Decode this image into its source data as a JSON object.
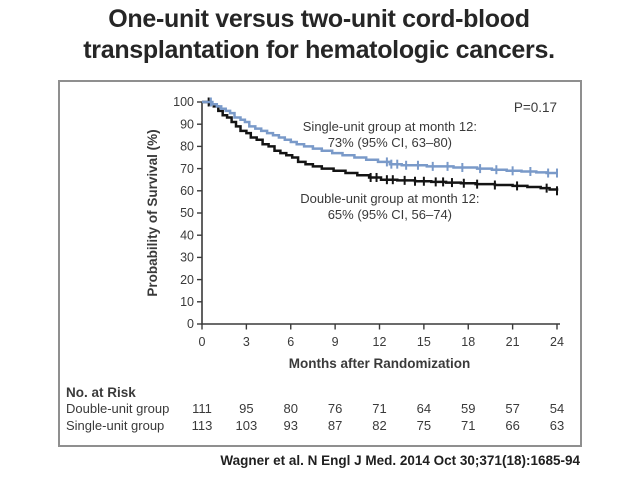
{
  "slide": {
    "title_lines": [
      "One-unit versus two-unit cord-blood",
      "transplantation for hematologic cancers."
    ],
    "citation": "Wagner et al. N Engl J Med. 2014 Oct 30;371(18):1685-94"
  },
  "colors": {
    "single_unit": "#7a9ac9",
    "double_unit": "#141414",
    "axis": "#3a3a3a",
    "text": "#3a3a3a",
    "panel_border": "#8f8f8f"
  },
  "chart_data": {
    "type": "line",
    "subtype": "kaplan-meier-step",
    "title": "",
    "xlabel": "Months after Randomization",
    "ylabel": "Probability of Survival (%)",
    "xlim": [
      0,
      24
    ],
    "ylim": [
      0,
      100
    ],
    "xticks": [
      0,
      3,
      6,
      9,
      12,
      15,
      18,
      21,
      24
    ],
    "yticks": [
      0,
      10,
      20,
      30,
      40,
      50,
      60,
      70,
      80,
      90,
      100
    ],
    "grid": false,
    "legend_position": "none",
    "pvalue_label": "P=0.17",
    "annotations": [
      {
        "name": "single-unit-annotation",
        "lines": [
          "Single-unit group at month 12:",
          "73% (95% CI, 63–80)"
        ],
        "x": 12.7,
        "y": 87
      },
      {
        "name": "double-unit-annotation",
        "lines": [
          "Double-unit group at month 12:",
          "65% (95% CI, 56–74)"
        ],
        "x": 12.7,
        "y": 54.5
      }
    ],
    "series": [
      {
        "name": "Double-unit group",
        "color_key": "double_unit",
        "points": [
          [
            0,
            100
          ],
          [
            0.5,
            99
          ],
          [
            0.8,
            98
          ],
          [
            1.1,
            96
          ],
          [
            1.4,
            94
          ],
          [
            1.7,
            93
          ],
          [
            2.0,
            91
          ],
          [
            2.3,
            89
          ],
          [
            2.6,
            87
          ],
          [
            3.0,
            86
          ],
          [
            3.3,
            84
          ],
          [
            3.7,
            83
          ],
          [
            4.1,
            81
          ],
          [
            4.5,
            80
          ],
          [
            4.9,
            78
          ],
          [
            5.3,
            77
          ],
          [
            5.7,
            76
          ],
          [
            6.1,
            75
          ],
          [
            6.5,
            73
          ],
          [
            7.0,
            72
          ],
          [
            7.5,
            71
          ],
          [
            8.1,
            70
          ],
          [
            8.9,
            69
          ],
          [
            9.7,
            68
          ],
          [
            10.5,
            67
          ],
          [
            11.3,
            66
          ],
          [
            12.1,
            65
          ],
          [
            13.2,
            64.7
          ],
          [
            14.4,
            64.3
          ],
          [
            15.5,
            64
          ],
          [
            16.5,
            63.7
          ],
          [
            17.5,
            63.4
          ],
          [
            18.5,
            63
          ],
          [
            19.8,
            62.6
          ],
          [
            21.0,
            62.2
          ],
          [
            22.0,
            61.7
          ],
          [
            22.9,
            61.2
          ],
          [
            23.5,
            60.6
          ],
          [
            24,
            60
          ]
        ],
        "censor_months": [
          0.45,
          11.4,
          11.8,
          12.5,
          12.9,
          13.7,
          14.4,
          15.0,
          15.8,
          16.3,
          16.9,
          17.7,
          18.6,
          19.8,
          21.3,
          23.3,
          24
        ]
      },
      {
        "name": "Single-unit group",
        "color_key": "single_unit",
        "points": [
          [
            0,
            100
          ],
          [
            0.7,
            99
          ],
          [
            1.0,
            98
          ],
          [
            1.3,
            97
          ],
          [
            1.6,
            96
          ],
          [
            1.9,
            95
          ],
          [
            2.2,
            93
          ],
          [
            2.6,
            92
          ],
          [
            2.9,
            91
          ],
          [
            3.2,
            89
          ],
          [
            3.6,
            88
          ],
          [
            4.0,
            87
          ],
          [
            4.4,
            86
          ],
          [
            4.8,
            85
          ],
          [
            5.2,
            84
          ],
          [
            5.6,
            83
          ],
          [
            6.0,
            82
          ],
          [
            6.4,
            81
          ],
          [
            6.9,
            80
          ],
          [
            7.5,
            79
          ],
          [
            8.1,
            78
          ],
          [
            8.8,
            77
          ],
          [
            9.5,
            76
          ],
          [
            10.3,
            75
          ],
          [
            11.1,
            74
          ],
          [
            11.9,
            73
          ],
          [
            12.7,
            72
          ],
          [
            13.5,
            71.5
          ],
          [
            15.2,
            71
          ],
          [
            17.0,
            70.5
          ],
          [
            18.6,
            70
          ],
          [
            19.6,
            69.5
          ],
          [
            20.6,
            69
          ],
          [
            21.6,
            68.7
          ],
          [
            22.6,
            68.3
          ],
          [
            23.3,
            68
          ],
          [
            24,
            68
          ]
        ],
        "censor_months": [
          0.6,
          12.5,
          12.8,
          13.2,
          13.8,
          14.6,
          15.6,
          16.6,
          17.6,
          18.8,
          19.9,
          21.0,
          22.2,
          23.4,
          24
        ]
      }
    ],
    "risk_table": {
      "title": "No. at Risk",
      "months": [
        0,
        3,
        6,
        9,
        12,
        15,
        18,
        21,
        24
      ],
      "rows": [
        {
          "label": "Double-unit group",
          "values": [
            111,
            95,
            80,
            76,
            71,
            64,
            59,
            57,
            54
          ]
        },
        {
          "label": "Single-unit group",
          "values": [
            113,
            103,
            93,
            87,
            82,
            75,
            71,
            66,
            63
          ]
        }
      ]
    }
  }
}
